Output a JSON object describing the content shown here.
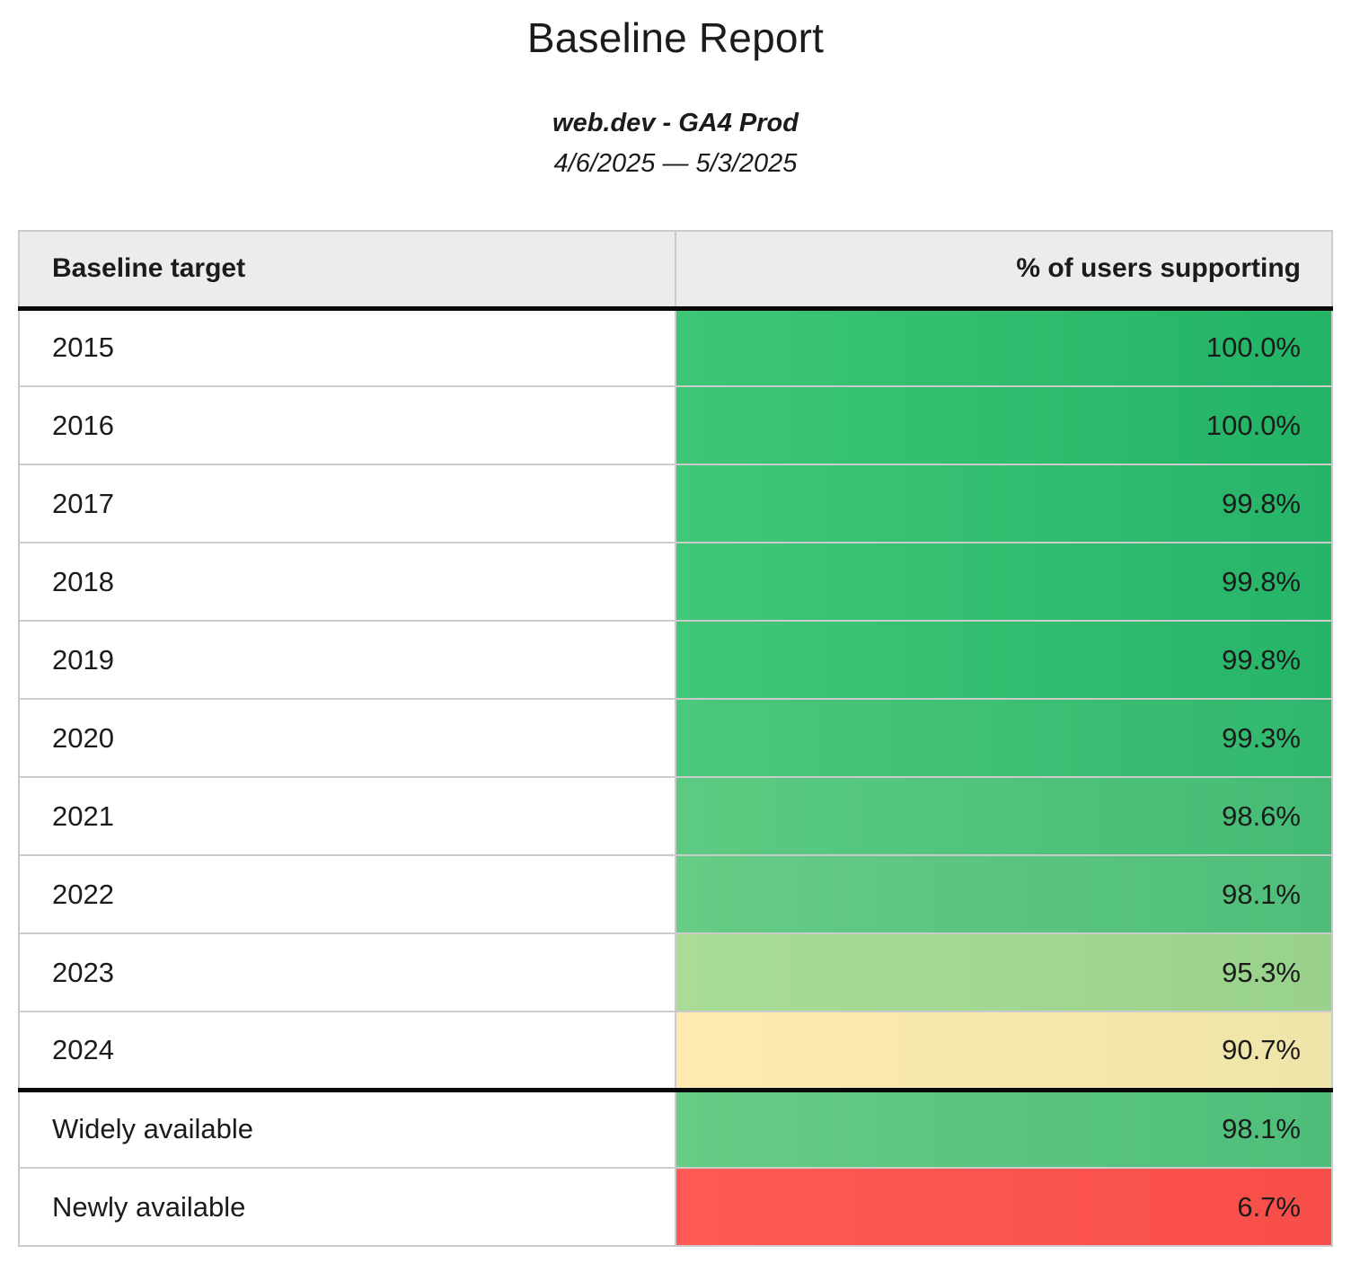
{
  "header": {
    "title": "Baseline Report",
    "property": "web.dev - GA4 Prod",
    "date_range": "4/6/2025 — 5/3/2025"
  },
  "table": {
    "columns": [
      "Baseline target",
      "% of users supporting"
    ],
    "rows": [
      {
        "label": "2015",
        "value": "100.0%",
        "color_from": "#3ec676",
        "color_to": "#22b366"
      },
      {
        "label": "2016",
        "value": "100.0%",
        "color_from": "#3ec676",
        "color_to": "#22b366"
      },
      {
        "label": "2017",
        "value": "99.8%",
        "color_from": "#41c778",
        "color_to": "#26b469"
      },
      {
        "label": "2018",
        "value": "99.8%",
        "color_from": "#41c778",
        "color_to": "#26b469"
      },
      {
        "label": "2019",
        "value": "99.8%",
        "color_from": "#41c778",
        "color_to": "#26b469"
      },
      {
        "label": "2020",
        "value": "99.3%",
        "color_from": "#4bc87b",
        "color_to": "#31b76e"
      },
      {
        "label": "2021",
        "value": "98.6%",
        "color_from": "#5ccb82",
        "color_to": "#44bb75"
      },
      {
        "label": "2022",
        "value": "98.1%",
        "color_from": "#66cc86",
        "color_to": "#4ebe7a"
      },
      {
        "label": "2023",
        "value": "95.3%",
        "color_from": "#a8dc97",
        "color_to": "#99d28c"
      },
      {
        "label": "2024",
        "value": "90.7%",
        "color_from": "#ffeab1",
        "color_to": "#eee5a8",
        "divider_after": true
      },
      {
        "label": "Widely available",
        "value": "98.1%",
        "color_from": "#66cc86",
        "color_to": "#4ebe7a"
      },
      {
        "label": "Newly available",
        "value": "6.7%",
        "color_from": "#ff5a55",
        "color_to": "#f84e49"
      }
    ]
  },
  "chart_data": {
    "type": "table",
    "title": "Baseline Report",
    "subtitle": "web.dev - GA4 Prod",
    "date_range": "4/6/2025 — 5/3/2025",
    "columns": [
      "Baseline target",
      "% of users supporting"
    ],
    "categories": [
      "2015",
      "2016",
      "2017",
      "2018",
      "2019",
      "2020",
      "2021",
      "2022",
      "2023",
      "2024",
      "Widely available",
      "Newly available"
    ],
    "values": [
      100.0,
      100.0,
      99.8,
      99.8,
      99.8,
      99.3,
      98.6,
      98.1,
      95.3,
      90.7,
      98.1,
      6.7
    ],
    "value_unit": "%",
    "color_scale": "red-yellow-green heatmap on value cells",
    "status_colors": {
      "high_green": "#2fbc6e",
      "mid_green": "#a1d791",
      "warning_yellow": "#f6e7ad",
      "alert_red": "#fb544f"
    }
  }
}
